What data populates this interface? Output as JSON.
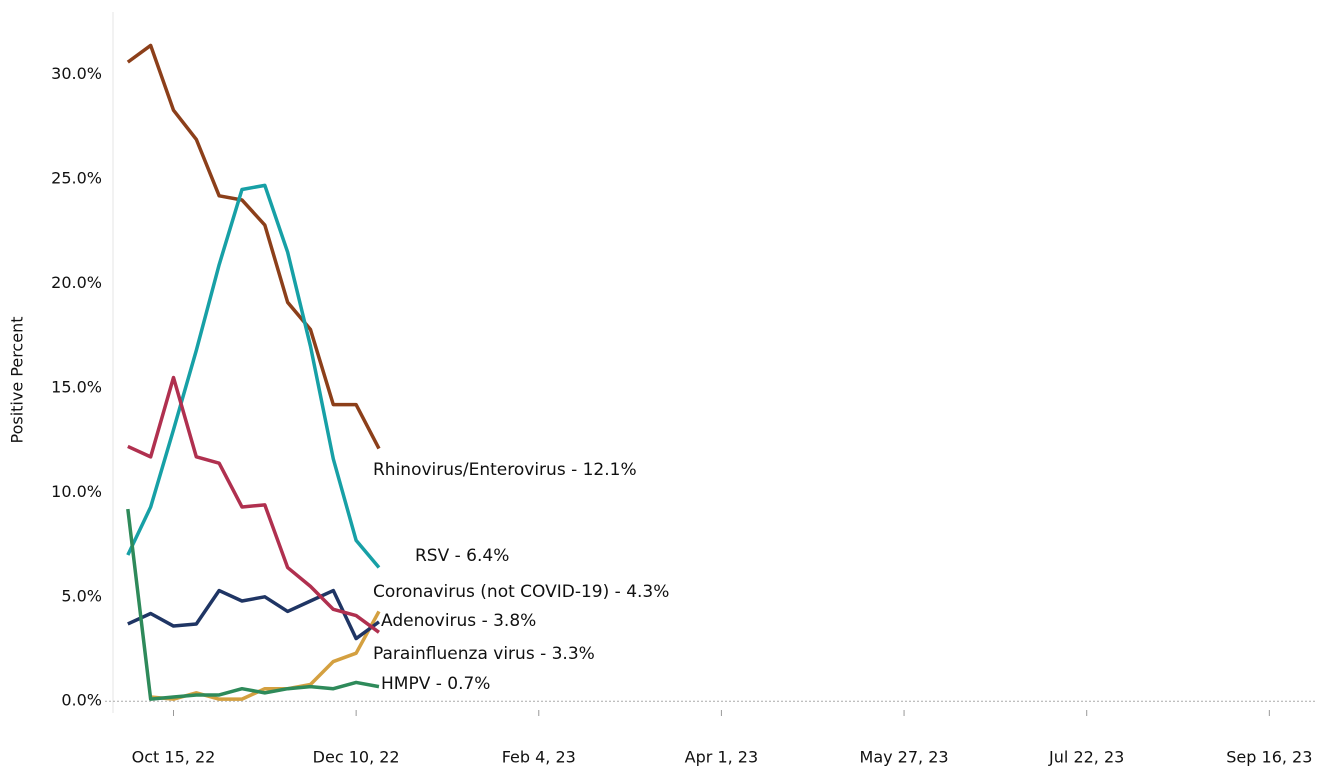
{
  "chart_data": {
    "type": "line",
    "y_label": "Positive Percent",
    "x": [
      "2022-10-01",
      "2022-10-08",
      "2022-10-15",
      "2022-10-22",
      "2022-10-29",
      "2022-11-05",
      "2022-11-12",
      "2022-11-19",
      "2022-11-26",
      "2022-12-03",
      "2022-12-10",
      "2022-12-17"
    ],
    "xlim": [
      "2022-09-24",
      "2023-09-30"
    ],
    "xticks": [
      {
        "value": "2022-10-15",
        "label": "Oct 15, 22"
      },
      {
        "value": "2022-12-10",
        "label": "Dec 10, 22"
      },
      {
        "value": "2023-02-04",
        "label": "Feb 4, 23"
      },
      {
        "value": "2023-04-01",
        "label": "Apr 1, 23"
      },
      {
        "value": "2023-05-27",
        "label": "May 27, 23"
      },
      {
        "value": "2023-07-22",
        "label": "Jul 22, 23"
      },
      {
        "value": "2023-09-16",
        "label": "Sep 16, 23"
      }
    ],
    "ylim": [
      -2,
      33
    ],
    "yticks": [
      {
        "value": 0,
        "label": "0.0%"
      },
      {
        "value": 5,
        "label": "5.0%"
      },
      {
        "value": 10,
        "label": "10.0%"
      },
      {
        "value": 15,
        "label": "15.0%"
      },
      {
        "value": 20,
        "label": "20.0%"
      },
      {
        "value": 25,
        "label": "25.0%"
      },
      {
        "value": 30,
        "label": "30.0%"
      }
    ],
    "series": [
      {
        "name": "Rhinovirus/Enterovirus",
        "end_label": "Rhinovirus/Enterovirus - 12.1%",
        "color": "#8c3f1a",
        "values": [
          30.6,
          31.4,
          28.3,
          26.9,
          24.2,
          24.0,
          22.8,
          19.1,
          17.8,
          14.2,
          14.2,
          12.1
        ]
      },
      {
        "name": "RSV",
        "end_label": "RSV - 6.4%",
        "color": "#17a0a6",
        "values": [
          7.0,
          9.3,
          13.0,
          16.8,
          20.9,
          24.5,
          24.7,
          21.5,
          17.0,
          11.6,
          7.7,
          6.4
        ]
      },
      {
        "name": "Coronavirus (not COVID-19)",
        "end_label": "Coronavirus (not COVID-19) - 4.3%",
        "color": "#d4a040",
        "values": [
          null,
          0.2,
          0.1,
          0.4,
          0.1,
          0.1,
          0.6,
          0.6,
          0.8,
          1.9,
          2.3,
          4.3
        ]
      },
      {
        "name": "Adenovirus",
        "end_label": "Adenovirus - 3.8%",
        "color": "#1f3564",
        "values": [
          3.7,
          4.2,
          3.6,
          3.7,
          5.3,
          4.8,
          5.0,
          4.3,
          4.8,
          5.3,
          3.0,
          3.8
        ]
      },
      {
        "name": "Parainfluenza virus",
        "end_label": "Parainfluenza virus - 3.3%",
        "color": "#b0304f",
        "values": [
          12.2,
          11.7,
          15.5,
          11.7,
          11.4,
          9.3,
          9.4,
          6.4,
          5.5,
          4.4,
          4.1,
          3.3
        ]
      },
      {
        "name": "HMPV",
        "end_label": "HMPV - 0.7%",
        "color": "#2e8a5a",
        "values": [
          9.2,
          0.1,
          0.2,
          0.3,
          0.3,
          0.6,
          0.4,
          0.6,
          0.7,
          0.6,
          0.9,
          0.7
        ]
      }
    ]
  }
}
